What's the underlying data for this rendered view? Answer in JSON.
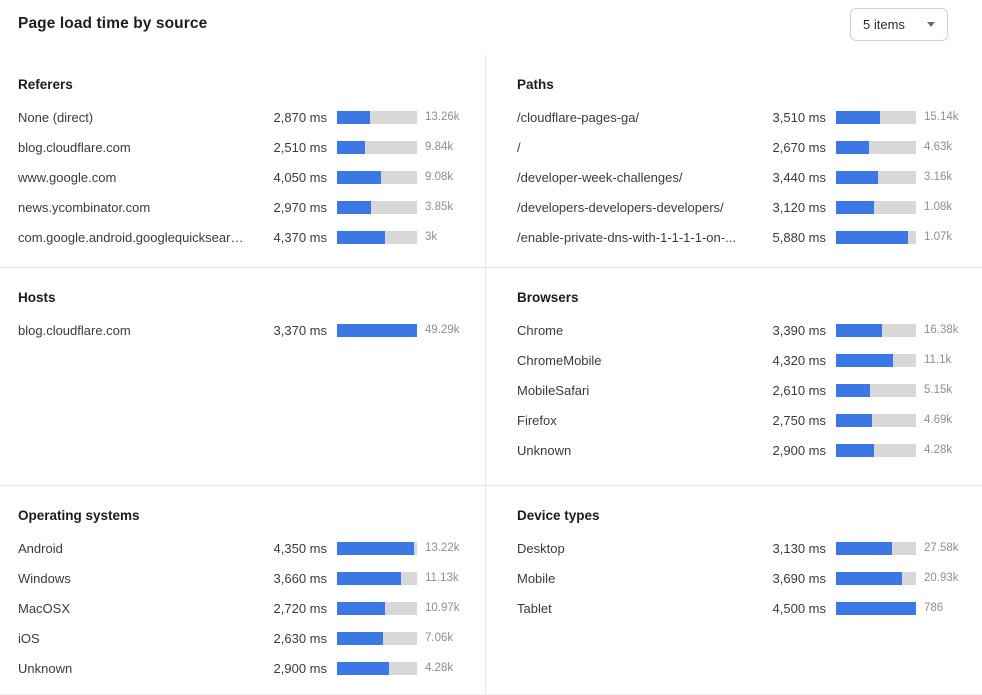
{
  "header": {
    "title": "Page load time by source",
    "items_select": {
      "value": "5 items"
    }
  },
  "colors": {
    "bar_fill": "#3c77e6",
    "bar_track": "#d8d8d8"
  },
  "panels": [
    {
      "title": "Referers",
      "rows": [
        {
          "label": "None (direct)",
          "ms": "2,870 ms",
          "bar_pct": 41,
          "count": "13.26k"
        },
        {
          "label": "blog.cloudflare.com",
          "ms": "2,510 ms",
          "bar_pct": 35,
          "count": "9.84k"
        },
        {
          "label": "www.google.com",
          "ms": "4,050 ms",
          "bar_pct": 55,
          "count": "9.08k"
        },
        {
          "label": "news.ycombinator.com",
          "ms": "2,970 ms",
          "bar_pct": 42,
          "count": "3.85k"
        },
        {
          "label": "com.google.android.googlequicksearc...",
          "ms": "4,370 ms",
          "bar_pct": 60,
          "count": "3k"
        }
      ]
    },
    {
      "title": "Paths",
      "rows": [
        {
          "label": "/cloudflare-pages-ga/",
          "ms": "3,510 ms",
          "bar_pct": 55,
          "count": "15.14k"
        },
        {
          "label": "/",
          "ms": "2,670 ms",
          "bar_pct": 41,
          "count": "4.63k"
        },
        {
          "label": "/developer-week-challenges/",
          "ms": "3,440 ms",
          "bar_pct": 53,
          "count": "3.16k"
        },
        {
          "label": "/developers-developers-developers/",
          "ms": "3,120 ms",
          "bar_pct": 47,
          "count": "1.08k"
        },
        {
          "label": "/enable-private-dns-with-1-1-1-1-on-...",
          "ms": "5,880 ms",
          "bar_pct": 90,
          "count": "1.07k"
        }
      ]
    },
    {
      "title": "Hosts",
      "rows": [
        {
          "label": "blog.cloudflare.com",
          "ms": "3,370 ms",
          "bar_pct": 100,
          "count": "49.29k"
        }
      ]
    },
    {
      "title": "Browsers",
      "rows": [
        {
          "label": "Chrome",
          "ms": "3,390 ms",
          "bar_pct": 57,
          "count": "16.38k"
        },
        {
          "label": "ChromeMobile",
          "ms": "4,320 ms",
          "bar_pct": 71,
          "count": "11.1k"
        },
        {
          "label": "MobileSafari",
          "ms": "2,610 ms",
          "bar_pct": 43,
          "count": "5.15k"
        },
        {
          "label": "Firefox",
          "ms": "2,750 ms",
          "bar_pct": 45,
          "count": "4.69k"
        },
        {
          "label": "Unknown",
          "ms": "2,900 ms",
          "bar_pct": 48,
          "count": "4.28k"
        }
      ]
    },
    {
      "title": "Operating systems",
      "rows": [
        {
          "label": "Android",
          "ms": "4,350 ms",
          "bar_pct": 96,
          "count": "13.22k"
        },
        {
          "label": "Windows",
          "ms": "3,660 ms",
          "bar_pct": 80,
          "count": "11.13k"
        },
        {
          "label": "MacOSX",
          "ms": "2,720 ms",
          "bar_pct": 60,
          "count": "10.97k"
        },
        {
          "label": "iOS",
          "ms": "2,630 ms",
          "bar_pct": 57,
          "count": "7.06k"
        },
        {
          "label": "Unknown",
          "ms": "2,900 ms",
          "bar_pct": 65,
          "count": "4.28k"
        }
      ]
    },
    {
      "title": "Device types",
      "rows": [
        {
          "label": "Desktop",
          "ms": "3,130 ms",
          "bar_pct": 70,
          "count": "27.58k"
        },
        {
          "label": "Mobile",
          "ms": "3,690 ms",
          "bar_pct": 82,
          "count": "20.93k"
        },
        {
          "label": "Tablet",
          "ms": "4,500 ms",
          "bar_pct": 100,
          "count": "786"
        }
      ]
    }
  ]
}
